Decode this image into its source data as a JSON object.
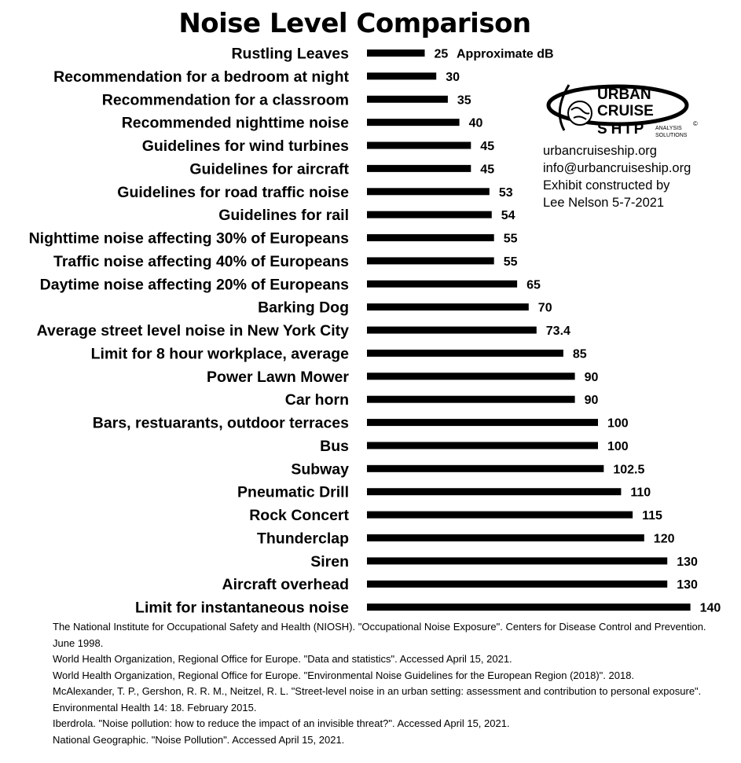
{
  "chart_data": {
    "type": "bar",
    "orientation": "horizontal",
    "title": "Noise Level Comparison",
    "value_unit_label": "Approximate dB",
    "categories": [
      "Rustling Leaves",
      "Recommendation for a bedroom at night",
      "Recommendation for a classroom",
      "Recommended nighttime noise",
      "Guidelines for wind turbines",
      "Guidelines for aircraft",
      "Guidelines for road traffic noise",
      "Guidelines for rail",
      "Nighttime noise affecting 30% of Europeans",
      "Traffic noise affecting 40% of Europeans",
      "Daytime noise affecting 20% of Europeans",
      "Barking Dog",
      "Average street level noise in New York City",
      "Limit for 8 hour workplace, average",
      "Power Lawn Mower",
      "Car horn",
      "Bars, restuarants, outdoor terraces",
      "Bus",
      "Subway",
      "Pneumatic Drill",
      "Rock Concert",
      "Thunderclap",
      "Siren",
      "Aircraft overhead",
      "Limit for instantaneous noise"
    ],
    "values": [
      25,
      30,
      35,
      40,
      45,
      45,
      53,
      54,
      55,
      55,
      65,
      70,
      73.4,
      85,
      90,
      90,
      100,
      100,
      102.5,
      110,
      115,
      120,
      130,
      130,
      140
    ],
    "value_labels": [
      "25",
      "30",
      "35",
      "40",
      "45",
      "45",
      "53",
      "54",
      "55",
      "55",
      "65",
      "70",
      "73.4",
      "85",
      "90",
      "90",
      "100",
      "100",
      "102.5",
      "110",
      "115",
      "120",
      "130",
      "130",
      "140"
    ],
    "xlim": [
      0,
      140
    ],
    "grid": false,
    "legend": "none",
    "bar_color": "#000000"
  },
  "logo": {
    "line1": "URBAN",
    "line2": "CRUISE",
    "line3": "SHIP",
    "tag1": "ANALYSIS",
    "tag2": "SOLUTIONS",
    "mark": "©"
  },
  "info": {
    "website": "urbancruiseship.org",
    "email": "info@urbancruiseship.org",
    "credit_line1": "Exhibit constructed by",
    "credit_line2": "Lee Nelson 5-7-2021"
  },
  "references": [
    "The National Institute for Occupational Safety and Health (NIOSH). \"Occupational Noise Exposure\". Centers for Disease Control and Prevention. June 1998.",
    "World Health Organization, Regional Office for Europe. \"Data and statistics\". Accessed April 15, 2021.",
    "World Health Organization, Regional Office for Europe. \"Environmental Noise Guidelines for the European Region (2018)\". 2018.",
    "McAlexander, T. P., Gershon, R. R. M., Neitzel, R. L. \"Street-level noise in an urban setting: assessment and contribution to personal exposure\". Environmental Health 14: 18. February 2015.",
    "Iberdrola. \"Noise pollution: how to reduce the impact of an invisible threat?\". Accessed April 15, 2021.",
    "National Geographic. \"Noise Pollution\". Accessed April 15, 2021."
  ]
}
